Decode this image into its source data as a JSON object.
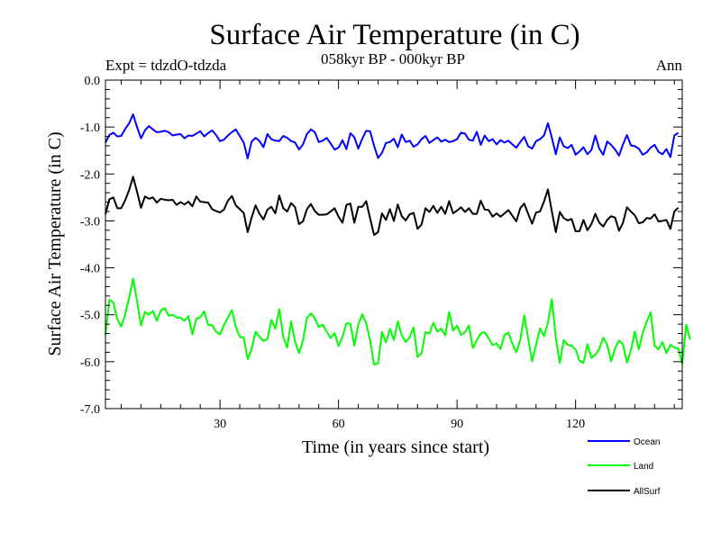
{
  "chart_data": {
    "type": "line",
    "title": "Surface Air Temperature (in C)",
    "subtitle": "058kyr BP - 000kyr BP",
    "left_note": "Expt = tdzdO-tdzda",
    "right_note": "Ann",
    "xlabel": "Time (in years since start)",
    "ylabel": "Surface Air Temperature (in C)",
    "xlim": [
      1,
      147
    ],
    "ylim": [
      -7.0,
      0.0
    ],
    "x_ticks": [
      30,
      60,
      90,
      120
    ],
    "x_tick_labels": [
      "30",
      "60",
      "90",
      "120"
    ],
    "y_ticks": [
      0,
      -1,
      -2,
      -3,
      -4,
      -5,
      -6,
      -7
    ],
    "y_tick_labels": [
      "0.0",
      "-1.0",
      "-2.0",
      "-3.0",
      "-4.0",
      "-5.0",
      "-6.0",
      "-7.0"
    ],
    "legend_position": "bottom-right, outside plot",
    "series": [
      {
        "name": "Ocean",
        "color": "#0000ff",
        "values": [
          -1.33,
          -1.17,
          -1.12,
          -1.2,
          -1.19,
          -1.04,
          -0.92,
          -0.73,
          -1.0,
          -1.24,
          -1.07,
          -0.98,
          -1.05,
          -1.11,
          -1.1,
          -1.08,
          -1.11,
          -1.18,
          -1.16,
          -1.15,
          -1.24,
          -1.18,
          -1.19,
          -1.14,
          -1.09,
          -1.2,
          -1.13,
          -1.07,
          -1.17,
          -1.3,
          -1.27,
          -1.18,
          -1.11,
          -1.05,
          -1.19,
          -1.33,
          -1.67,
          -1.31,
          -1.23,
          -1.3,
          -1.43,
          -1.15,
          -1.26,
          -1.29,
          -1.3,
          -1.19,
          -1.23,
          -1.3,
          -1.33,
          -1.48,
          -1.37,
          -1.15,
          -1.05,
          -1.11,
          -1.32,
          -1.29,
          -1.23,
          -1.35,
          -1.48,
          -1.44,
          -1.28,
          -1.47,
          -1.13,
          -1.22,
          -1.46,
          -1.25,
          -1.08,
          -1.09,
          -1.4,
          -1.66,
          -1.55,
          -1.34,
          -1.32,
          -1.25,
          -1.43,
          -1.16,
          -1.32,
          -1.29,
          -1.42,
          -1.37,
          -1.26,
          -1.19,
          -1.34,
          -1.28,
          -1.22,
          -1.31,
          -1.27,
          -1.32,
          -1.3,
          -1.26,
          -1.12,
          -1.14,
          -1.27,
          -1.29,
          -1.1,
          -1.38,
          -1.18,
          -1.3,
          -1.26,
          -1.37,
          -1.28,
          -1.33,
          -1.29,
          -1.37,
          -1.44,
          -1.32,
          -1.21,
          -1.41,
          -1.46,
          -1.3,
          -1.26,
          -1.18,
          -0.92,
          -1.23,
          -1.58,
          -1.22,
          -1.41,
          -1.45,
          -1.38,
          -1.59,
          -1.52,
          -1.43,
          -1.58,
          -1.49,
          -1.18,
          -1.46,
          -1.59,
          -1.31,
          -1.38,
          -1.48,
          -1.61,
          -1.37,
          -1.17,
          -1.39,
          -1.41,
          -1.46,
          -1.59,
          -1.54,
          -1.44,
          -1.38,
          -1.53,
          -1.58,
          -1.47,
          -1.64,
          -1.18,
          -1.12
        ]
      },
      {
        "name": "Land",
        "color": "#00ff00",
        "values": [
          -5.43,
          -4.68,
          -4.74,
          -5.1,
          -5.25,
          -4.99,
          -4.63,
          -4.23,
          -4.71,
          -5.23,
          -4.94,
          -5.0,
          -4.92,
          -5.13,
          -4.91,
          -4.86,
          -5.02,
          -5.0,
          -5.06,
          -5.06,
          -5.13,
          -5.03,
          -5.42,
          -5.09,
          -5.05,
          -4.93,
          -5.22,
          -5.22,
          -5.36,
          -5.42,
          -5.22,
          -5.06,
          -4.9,
          -5.26,
          -5.47,
          -5.49,
          -5.95,
          -5.73,
          -5.36,
          -5.47,
          -5.56,
          -5.52,
          -5.11,
          -5.3,
          -4.88,
          -5.47,
          -5.7,
          -5.14,
          -5.58,
          -5.82,
          -5.55,
          -5.07,
          -4.97,
          -5.08,
          -5.26,
          -5.21,
          -5.36,
          -5.5,
          -5.39,
          -5.67,
          -5.47,
          -5.18,
          -5.19,
          -5.66,
          -5.21,
          -4.99,
          -5.18,
          -5.55,
          -6.06,
          -6.04,
          -5.37,
          -5.59,
          -5.3,
          -5.54,
          -5.14,
          -5.44,
          -5.58,
          -5.48,
          -5.27,
          -5.9,
          -5.82,
          -5.37,
          -5.4,
          -5.17,
          -5.36,
          -5.3,
          -5.44,
          -4.94,
          -5.34,
          -5.23,
          -5.43,
          -5.37,
          -5.23,
          -5.71,
          -5.54,
          -5.4,
          -5.37,
          -5.5,
          -5.65,
          -5.61,
          -5.73,
          -5.43,
          -5.38,
          -5.62,
          -5.8,
          -5.54,
          -5.01,
          -5.5,
          -5.99,
          -5.64,
          -5.29,
          -5.46,
          -5.17,
          -4.67,
          -5.49,
          -6.03,
          -5.54,
          -5.64,
          -5.66,
          -5.74,
          -5.98,
          -6.03,
          -5.63,
          -5.92,
          -5.85,
          -5.73,
          -5.49,
          -5.64,
          -5.99,
          -5.71,
          -5.55,
          -5.63,
          -6.02,
          -5.76,
          -5.36,
          -5.74,
          -5.38,
          -5.15,
          -4.95,
          -5.66,
          -5.74,
          -5.58,
          -5.82,
          -5.64,
          -5.7,
          -5.72,
          -6.04,
          -5.21,
          -5.53
        ]
      },
      {
        "name": "AllSurf",
        "color": "#000000",
        "values": [
          -2.86,
          -2.54,
          -2.5,
          -2.73,
          -2.73,
          -2.56,
          -2.34,
          -2.06,
          -2.38,
          -2.72,
          -2.48,
          -2.53,
          -2.5,
          -2.61,
          -2.53,
          -2.55,
          -2.56,
          -2.55,
          -2.66,
          -2.6,
          -2.65,
          -2.59,
          -2.69,
          -2.48,
          -2.59,
          -2.6,
          -2.61,
          -2.75,
          -2.79,
          -2.82,
          -2.76,
          -2.57,
          -2.47,
          -2.67,
          -2.75,
          -2.83,
          -3.24,
          -2.93,
          -2.67,
          -2.85,
          -2.97,
          -2.76,
          -2.7,
          -2.84,
          -2.46,
          -2.73,
          -2.8,
          -2.62,
          -2.71,
          -3.07,
          -3.01,
          -2.75,
          -2.64,
          -2.79,
          -2.87,
          -2.87,
          -2.86,
          -2.8,
          -2.73,
          -2.91,
          -3.04,
          -2.66,
          -2.63,
          -3.04,
          -2.7,
          -2.7,
          -2.58,
          -2.95,
          -3.3,
          -3.24,
          -2.84,
          -2.98,
          -2.75,
          -3.0,
          -2.65,
          -2.9,
          -2.99,
          -2.86,
          -2.83,
          -3.17,
          -3.08,
          -2.73,
          -2.81,
          -2.68,
          -2.83,
          -2.7,
          -2.85,
          -2.58,
          -2.84,
          -2.78,
          -2.71,
          -2.81,
          -2.73,
          -2.85,
          -2.85,
          -2.57,
          -2.76,
          -2.77,
          -2.91,
          -2.84,
          -2.91,
          -2.84,
          -2.77,
          -2.89,
          -3.01,
          -2.73,
          -2.63,
          -2.85,
          -3.06,
          -2.82,
          -2.8,
          -2.59,
          -2.33,
          -2.8,
          -3.24,
          -2.81,
          -2.94,
          -2.99,
          -2.96,
          -3.22,
          -3.22,
          -2.98,
          -3.2,
          -3.07,
          -2.85,
          -3.04,
          -3.12,
          -2.98,
          -2.9,
          -2.93,
          -3.21,
          -3.04,
          -2.71,
          -2.8,
          -2.88,
          -3.05,
          -3.03,
          -2.94,
          -2.95,
          -2.86,
          -3.01,
          -3.0,
          -2.98,
          -3.17,
          -2.8,
          -2.72
        ]
      }
    ]
  }
}
